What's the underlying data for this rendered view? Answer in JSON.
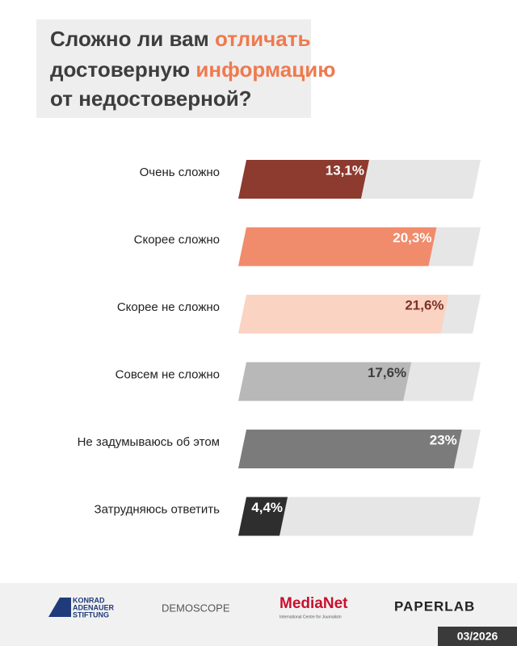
{
  "chart_data": {
    "type": "bar",
    "title_segments": [
      {
        "text": "Сложно ли вам",
        "color": "#3d3d3d"
      },
      {
        "text": "отличать",
        "color": "#ee7a4f"
      },
      {
        "text": "достоверную",
        "color": "#3d3d3d"
      },
      {
        "text": "информацию",
        "color": "#ee7a4f"
      },
      {
        "text": "от недостоверной?",
        "color": "#3d3d3d"
      }
    ],
    "categories": [
      "Очень сложно",
      "Скорее сложно",
      "Скорее не сложно",
      "Совсем не сложно",
      "Не задумываюсь об этом",
      "Затрудняюсь ответить"
    ],
    "values": [
      13.1,
      20.3,
      21.6,
      17.6,
      23,
      4.4
    ],
    "value_labels": [
      "13,1%",
      "20,3%",
      "21,6%",
      "17,6%",
      "23%",
      "4,4%"
    ],
    "colors": [
      "#8d3a2f",
      "#f08b6c",
      "#fbd3c3",
      "#b8b8b8",
      "#7b7b7b",
      "#2e2e2e"
    ],
    "label_colors": [
      "#ffffff",
      "#ffffff",
      "#7a3328",
      "#3d3d3d",
      "#ffffff",
      "#ffffff"
    ],
    "track_color": "#e6e6e6",
    "xlim": [
      0,
      25
    ]
  },
  "footer": {
    "logos": [
      "KONRAD",
      "ADENAUER",
      "STIFTUNG",
      "DEMOSCOPE",
      "MediaNet",
      "International Centre for Journalism",
      "PAPERLAB"
    ],
    "date": "03/2026"
  }
}
